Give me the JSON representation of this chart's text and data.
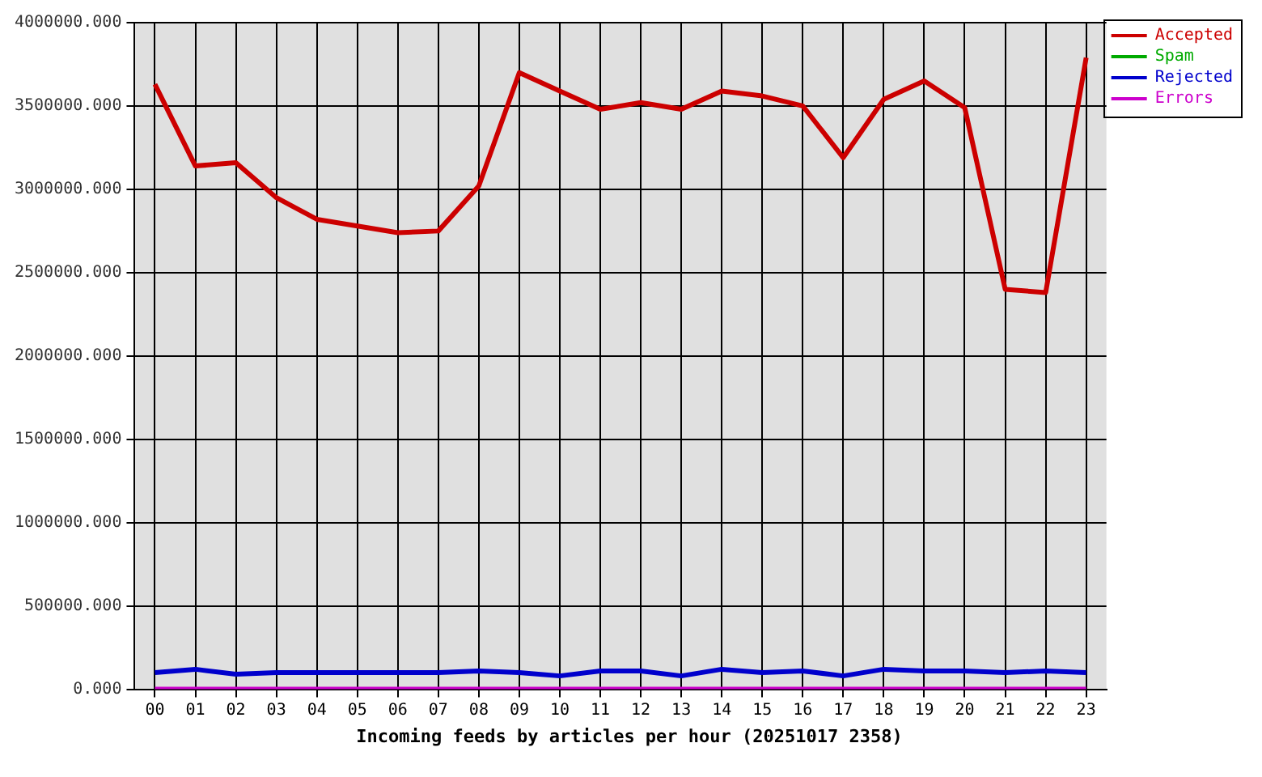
{
  "chart_data": {
    "type": "line",
    "title": "Incoming feeds by articles per hour (20251017 2358)",
    "categories": [
      "00",
      "01",
      "02",
      "03",
      "04",
      "05",
      "06",
      "07",
      "08",
      "09",
      "10",
      "11",
      "12",
      "13",
      "14",
      "15",
      "16",
      "17",
      "18",
      "19",
      "20",
      "21",
      "22",
      "23"
    ],
    "series": [
      {
        "name": "Accepted",
        "color": "#cc0000",
        "values": [
          3630000,
          3140000,
          3160000,
          2950000,
          2820000,
          2780000,
          2740000,
          2750000,
          3020000,
          3700000,
          3590000,
          3480000,
          3520000,
          3480000,
          3590000,
          3560000,
          3500000,
          3190000,
          3540000,
          3650000,
          3490000,
          2400000,
          2380000,
          3790000
        ]
      },
      {
        "name": "Spam",
        "color": "#00aa00",
        "values": [
          null,
          null,
          null,
          null,
          null,
          null,
          null,
          null,
          null,
          null,
          null,
          null,
          null,
          null,
          null,
          null,
          null,
          null,
          null,
          null,
          null,
          null,
          null,
          null
        ]
      },
      {
        "name": "Rejected",
        "color": "#0000cc",
        "values": [
          100000,
          120000,
          90000,
          100000,
          100000,
          100000,
          100000,
          100000,
          110000,
          100000,
          80000,
          110000,
          110000,
          80000,
          120000,
          100000,
          110000,
          80000,
          120000,
          110000,
          110000,
          100000,
          110000,
          100000
        ]
      },
      {
        "name": "Errors",
        "color": "#cc00cc",
        "values": [
          0,
          0,
          0,
          0,
          0,
          0,
          0,
          0,
          0,
          0,
          0,
          0,
          0,
          0,
          0,
          0,
          0,
          0,
          0,
          0,
          0,
          0,
          0,
          0
        ]
      }
    ],
    "ylim": [
      0,
      4000000
    ],
    "yticks": [
      {
        "value": 0,
        "label": "0.000"
      },
      {
        "value": 500000,
        "label": "500000.000"
      },
      {
        "value": 1000000,
        "label": "1000000.000"
      },
      {
        "value": 1500000,
        "label": "1500000.000"
      },
      {
        "value": 2000000,
        "label": "2000000.000"
      },
      {
        "value": 2500000,
        "label": "2500000.000"
      },
      {
        "value": 3000000,
        "label": "3000000.000"
      },
      {
        "value": 3500000,
        "label": "3500000.000"
      },
      {
        "value": 4000000,
        "label": "4000000.000"
      }
    ],
    "grid": true,
    "legend": "top right"
  }
}
